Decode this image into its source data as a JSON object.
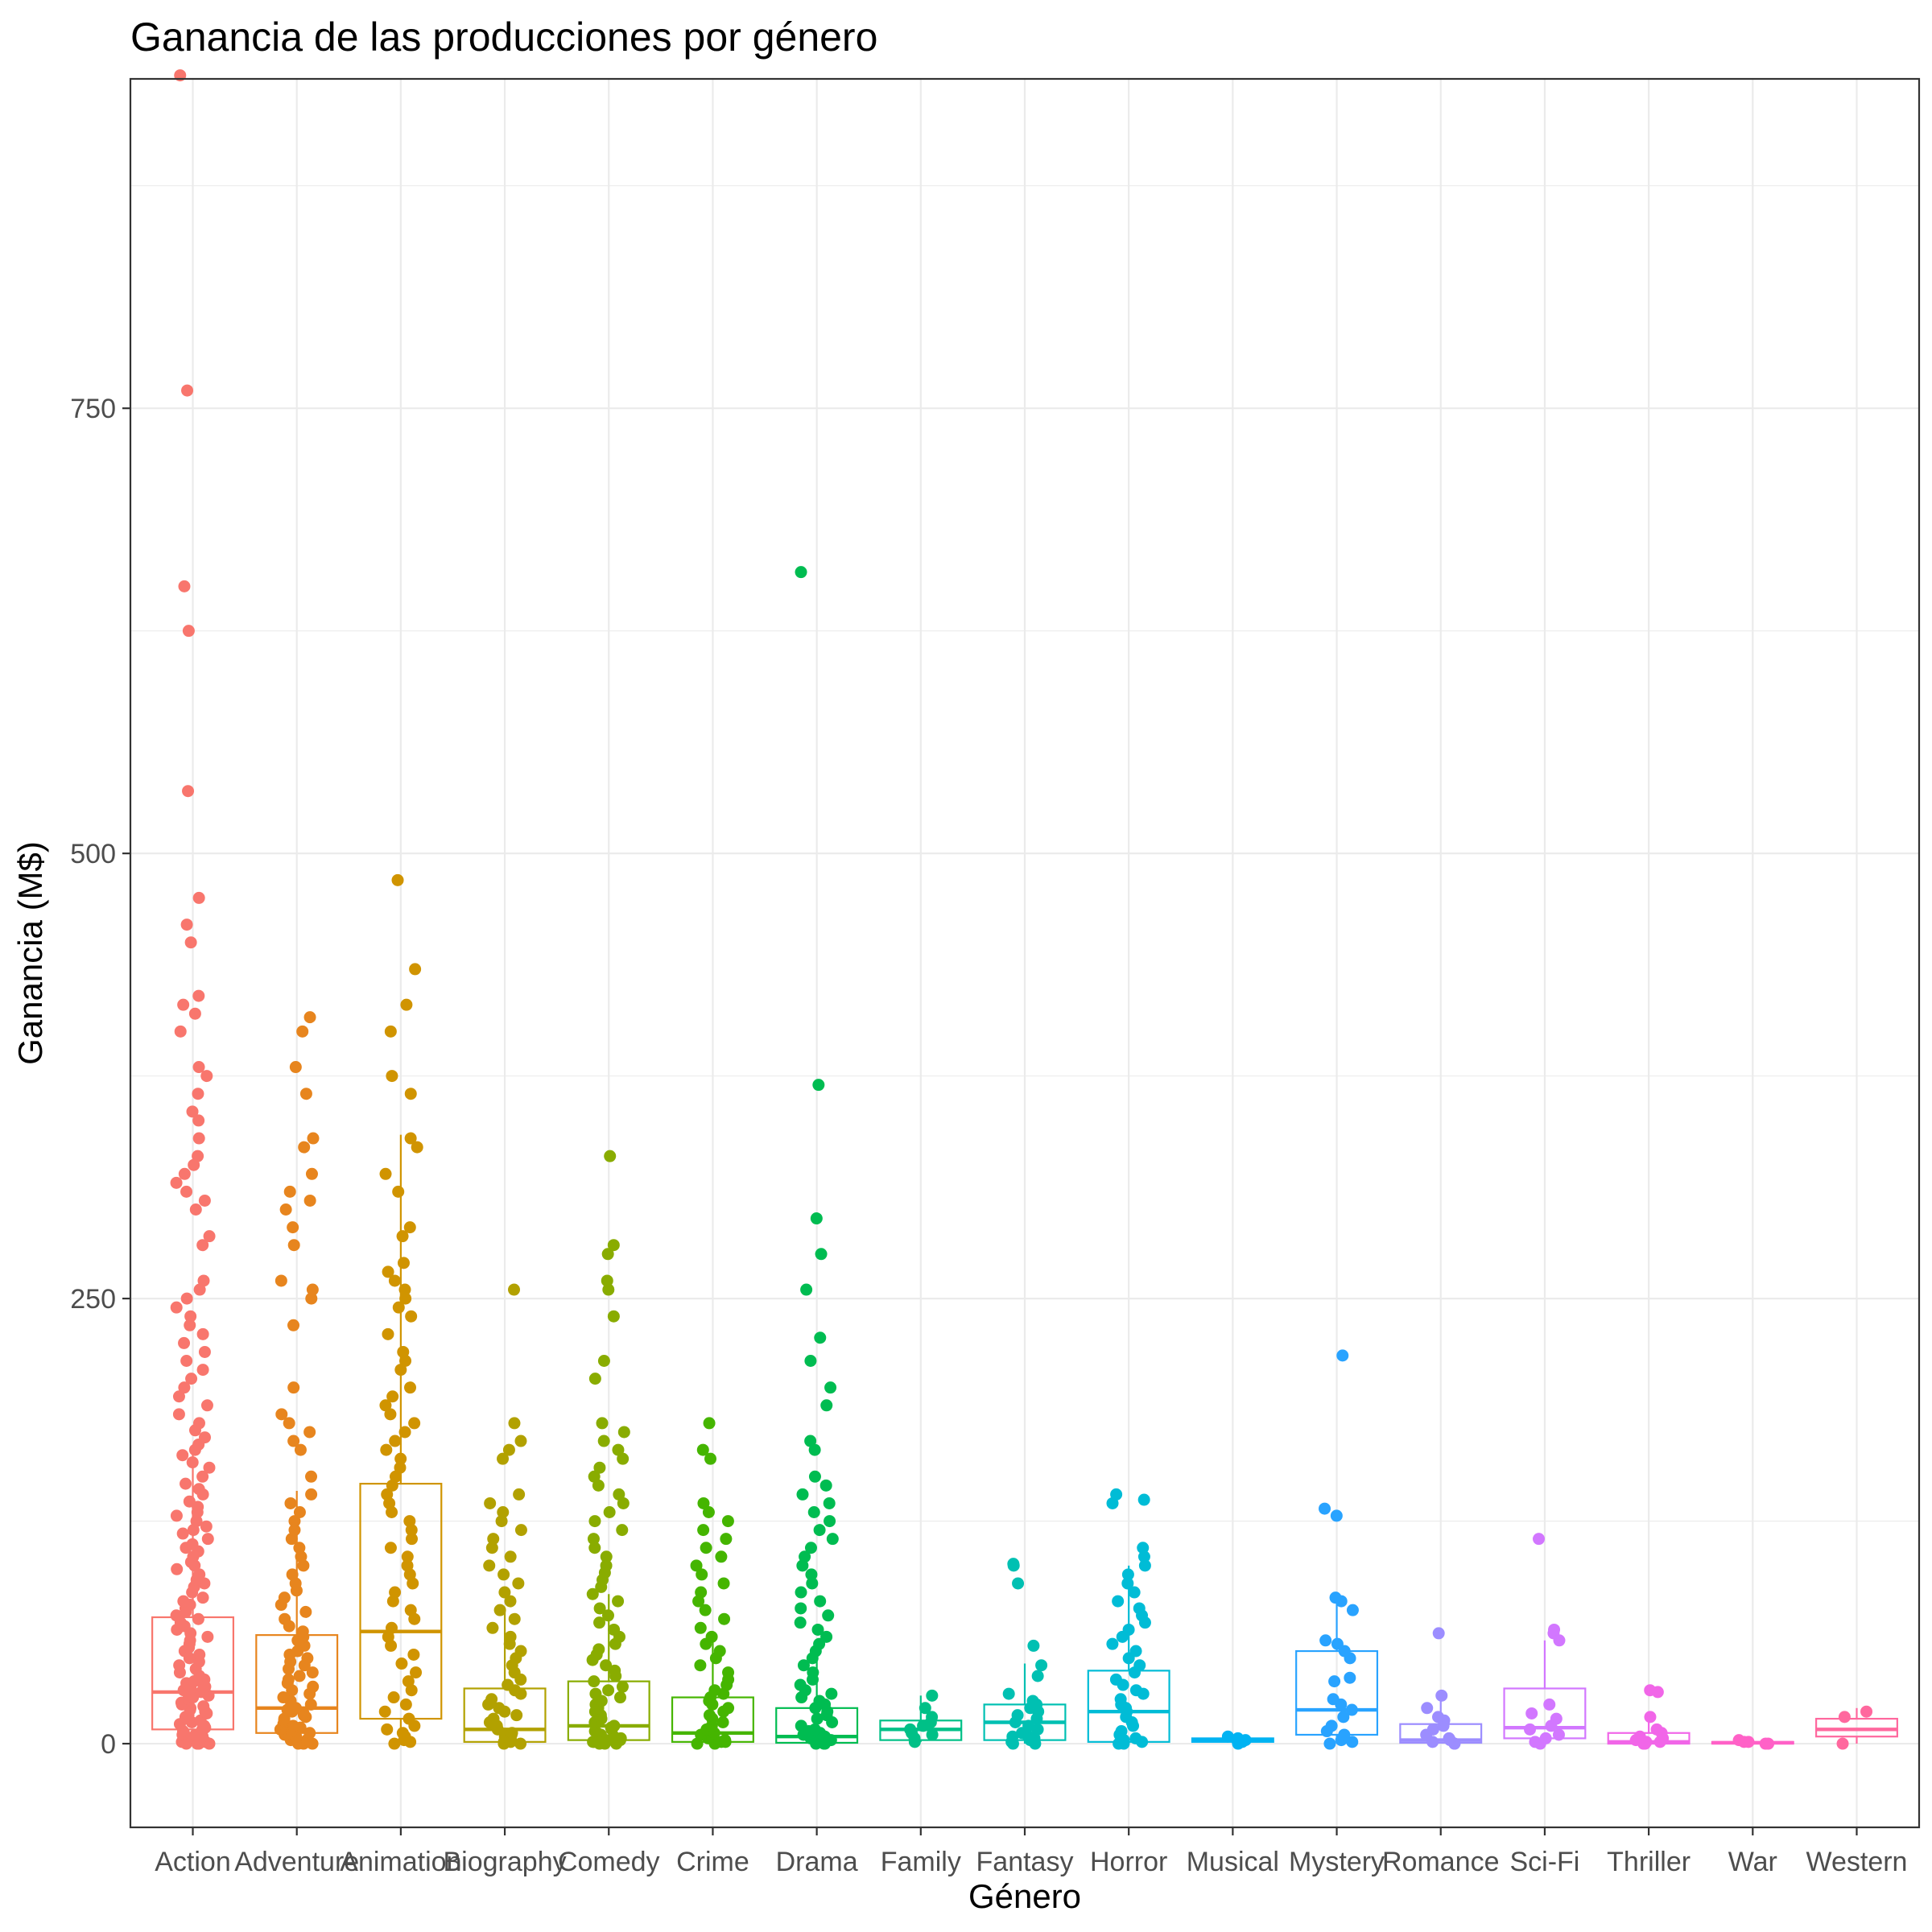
{
  "chart_data": {
    "type": "box_jitter",
    "title": "Ganancia de las producciones por género",
    "xlabel": "Género",
    "ylabel": "Ganancia (M$)",
    "ylim": [
      -47,
      935
    ],
    "y_ticks": [
      0,
      250,
      500,
      750
    ],
    "grid": true,
    "legend": "none",
    "categories": [
      "Action",
      "Adventure",
      "Animation",
      "Biography",
      "Comedy",
      "Crime",
      "Drama",
      "Family",
      "Fantasy",
      "Horror",
      "Musical",
      "Mystery",
      "Romance",
      "Sci-Fi",
      "Thriller",
      "War",
      "Western"
    ],
    "colors": [
      "#F8766D",
      "#E7851E",
      "#D09400",
      "#B2A100",
      "#89AC00",
      "#45B500",
      "#00BC51",
      "#00C087",
      "#00C0B2",
      "#00BCD6",
      "#00B3F2",
      "#29A3FF",
      "#9C8DFF",
      "#D277FF",
      "#F166E8",
      "#FF61C7",
      "#FF689E"
    ],
    "boxes": [
      {
        "q1": 8,
        "median": 29,
        "q3": 71,
        "whisker_low": 0,
        "whisker_high": 165
      },
      {
        "q1": 6,
        "median": 20,
        "q3": 61,
        "whisker_low": 0,
        "whisker_high": 142
      },
      {
        "q1": 14,
        "median": 63,
        "q3": 146,
        "whisker_low": 0,
        "whisker_high": 342
      },
      {
        "q1": 1,
        "median": 8,
        "q3": 31,
        "whisker_low": 0,
        "whisker_high": 76
      },
      {
        "q1": 2,
        "median": 10,
        "q3": 35,
        "whisker_low": 0,
        "whisker_high": 84
      },
      {
        "q1": 1,
        "median": 6,
        "q3": 26,
        "whisker_low": 0,
        "whisker_high": 63
      },
      {
        "q1": 0.5,
        "median": 4,
        "q3": 20,
        "whisker_low": 0,
        "whisker_high": 50
      },
      {
        "q1": 2,
        "median": 8,
        "q3": 13,
        "whisker_low": 1,
        "whisker_high": 27
      },
      {
        "q1": 2,
        "median": 12,
        "q3": 22,
        "whisker_low": 0,
        "whisker_high": 45
      },
      {
        "q1": 1,
        "median": 18,
        "q3": 41,
        "whisker_low": 0,
        "whisker_high": 100
      },
      {
        "q1": 1,
        "median": 2,
        "q3": 3,
        "whisker_low": 0,
        "whisker_high": 4
      },
      {
        "q1": 5,
        "median": 19,
        "q3": 52,
        "whisker_low": 0,
        "whisker_high": 83
      },
      {
        "q1": 0.5,
        "median": 2,
        "q3": 11,
        "whisker_low": 0,
        "whisker_high": 28
      },
      {
        "q1": 3,
        "median": 9,
        "q3": 31,
        "whisker_low": 0,
        "whisker_high": 58
      },
      {
        "q1": 0,
        "median": 1,
        "q3": 6,
        "whisker_low": 0,
        "whisker_high": 15
      },
      {
        "q1": 0,
        "median": 0.5,
        "q3": 1,
        "whisker_low": 0,
        "whisker_high": 2
      },
      {
        "q1": 4,
        "median": 8,
        "q3": 14,
        "whisker_low": 0,
        "whisker_high": 20
      }
    ],
    "points": [
      [
        0,
        0,
        0,
        0,
        0,
        1,
        1,
        1,
        2,
        2,
        3,
        3,
        4,
        5,
        5,
        6,
        7,
        8,
        9,
        10,
        11,
        12,
        13,
        14,
        15,
        16,
        17,
        18,
        19,
        20,
        21,
        22,
        23,
        24,
        25,
        26,
        27,
        28,
        29,
        30,
        31,
        32,
        33,
        34,
        35,
        36,
        38,
        40,
        42,
        44,
        46,
        48,
        50,
        52,
        54,
        56,
        58,
        60,
        62,
        64,
        66,
        68,
        70,
        72,
        74,
        76,
        78,
        80,
        82,
        85,
        88,
        90,
        92,
        95,
        98,
        100,
        102,
        105,
        108,
        110,
        112,
        115,
        118,
        120,
        122,
        125,
        128,
        130,
        133,
        136,
        140,
        143,
        146,
        150,
        155,
        158,
        162,
        165,
        168,
        172,
        176,
        180,
        185,
        190,
        195,
        200,
        205,
        210,
        215,
        220,
        225,
        230,
        235,
        240,
        245,
        250,
        255,
        260,
        280,
        285,
        300,
        305,
        310,
        315,
        320,
        325,
        330,
        340,
        350,
        355,
        365,
        375,
        380,
        400,
        410,
        415,
        420,
        450,
        460,
        475,
        535,
        625,
        650,
        760,
        937
      ],
      [
        0,
        0,
        0,
        1,
        1,
        2,
        2,
        3,
        4,
        5,
        6,
        7,
        8,
        9,
        10,
        11,
        12,
        13,
        14,
        15,
        16,
        17,
        18,
        19,
        20,
        22,
        24,
        26,
        28,
        30,
        32,
        34,
        36,
        38,
        40,
        42,
        44,
        46,
        48,
        50,
        52,
        55,
        58,
        60,
        63,
        66,
        70,
        74,
        78,
        82,
        86,
        90,
        95,
        100,
        105,
        110,
        115,
        120,
        125,
        130,
        135,
        140,
        150,
        165,
        170,
        175,
        180,
        185,
        200,
        235,
        250,
        255,
        260,
        280,
        290,
        300,
        305,
        310,
        320,
        335,
        340,
        365,
        380,
        400,
        408
      ],
      [
        0,
        1,
        2,
        4,
        6,
        8,
        10,
        14,
        18,
        22,
        26,
        30,
        35,
        40,
        45,
        50,
        55,
        60,
        65,
        70,
        75,
        80,
        85,
        90,
        95,
        100,
        105,
        110,
        115,
        120,
        125,
        130,
        135,
        140,
        145,
        150,
        155,
        160,
        165,
        170,
        175,
        180,
        185,
        190,
        195,
        200,
        210,
        215,
        220,
        230,
        240,
        245,
        250,
        255,
        260,
        265,
        270,
        285,
        290,
        310,
        320,
        335,
        340,
        365,
        375,
        400,
        415,
        435,
        485
      ],
      [
        0,
        0,
        1,
        1,
        2,
        3,
        4,
        5,
        6,
        8,
        10,
        12,
        14,
        16,
        18,
        20,
        22,
        25,
        28,
        30,
        33,
        36,
        40,
        44,
        48,
        52,
        56,
        60,
        65,
        70,
        75,
        80,
        85,
        90,
        95,
        100,
        105,
        110,
        115,
        120,
        125,
        130,
        135,
        140,
        160,
        165,
        170,
        180,
        255
      ],
      [
        0,
        0,
        0,
        1,
        1,
        2,
        2,
        3,
        4,
        5,
        6,
        7,
        8,
        9,
        10,
        12,
        14,
        16,
        18,
        20,
        22,
        24,
        26,
        28,
        30,
        32,
        35,
        38,
        41,
        44,
        47,
        50,
        53,
        56,
        60,
        64,
        68,
        72,
        76,
        80,
        84,
        88,
        92,
        96,
        100,
        105,
        110,
        115,
        120,
        125,
        130,
        135,
        140,
        145,
        150,
        155,
        160,
        165,
        170,
        175,
        180,
        205,
        215,
        240,
        255,
        260,
        275,
        280,
        330
      ],
      [
        0,
        0,
        1,
        1,
        2,
        3,
        4,
        5,
        6,
        8,
        10,
        12,
        14,
        16,
        18,
        20,
        22,
        24,
        26,
        28,
        30,
        33,
        36,
        40,
        44,
        48,
        52,
        56,
        60,
        65,
        70,
        75,
        80,
        85,
        90,
        95,
        100,
        105,
        110,
        115,
        120,
        125,
        130,
        135,
        160,
        165,
        180
      ],
      [
        0,
        0,
        0,
        1,
        1,
        2,
        2,
        3,
        4,
        5,
        6,
        7,
        8,
        10,
        12,
        14,
        16,
        18,
        20,
        22,
        24,
        26,
        28,
        30,
        33,
        36,
        40,
        44,
        48,
        52,
        56,
        60,
        64,
        68,
        72,
        76,
        80,
        85,
        90,
        95,
        100,
        105,
        110,
        115,
        120,
        125,
        130,
        135,
        140,
        145,
        150,
        165,
        170,
        190,
        200,
        215,
        228,
        255,
        275,
        295,
        370,
        658
      ],
      [
        1,
        3,
        5,
        6,
        8,
        10,
        12,
        15,
        20,
        27
      ],
      [
        0,
        0,
        1,
        2,
        3,
        4,
        5,
        6,
        8,
        10,
        12,
        14,
        16,
        18,
        20,
        22,
        24,
        28,
        38,
        44,
        55,
        90,
        100,
        101
      ],
      [
        0,
        0,
        1,
        2,
        3,
        5,
        7,
        10,
        12,
        15,
        18,
        20,
        22,
        25,
        28,
        30,
        33,
        36,
        40,
        44,
        48,
        52,
        56,
        60,
        64,
        68,
        72,
        76,
        80,
        85,
        90,
        95,
        100,
        105,
        110,
        135,
        137,
        140
      ],
      [
        0,
        1,
        2,
        3,
        4
      ],
      [
        0,
        1,
        2,
        3,
        5,
        7,
        10,
        15,
        19,
        22,
        25,
        35,
        37,
        48,
        52,
        56,
        58,
        75,
        80,
        82,
        128,
        132,
        218
      ],
      [
        0,
        0,
        1,
        2,
        3,
        5,
        8,
        10,
        13,
        15,
        20,
        27,
        62
      ],
      [
        0,
        1,
        3,
        5,
        8,
        10,
        14,
        17,
        22,
        58,
        62,
        64,
        115
      ],
      [
        0,
        0,
        0,
        1,
        1,
        2,
        3,
        4,
        6,
        8,
        15,
        29,
        30
      ],
      [
        0,
        0,
        1,
        1,
        2
      ],
      [
        0,
        15,
        18
      ]
    ]
  }
}
